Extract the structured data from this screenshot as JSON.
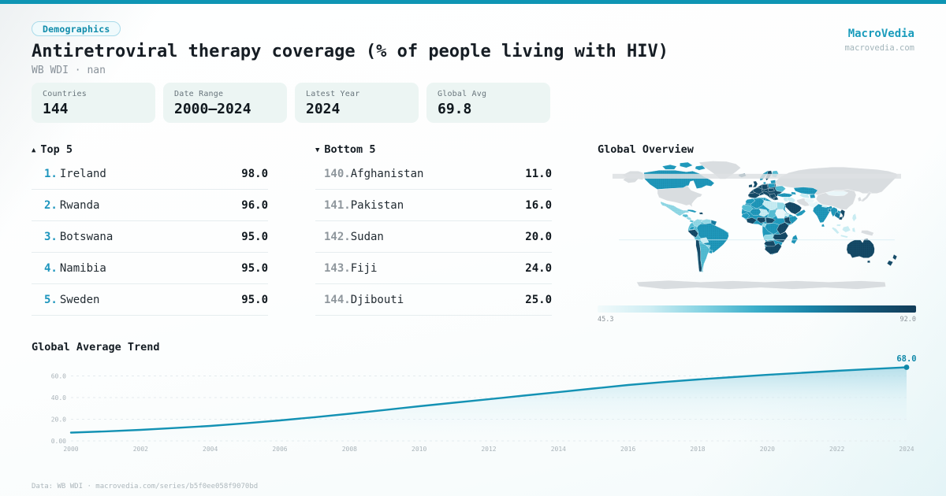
{
  "theme": {
    "accent": "#0e95b4",
    "brand_color": "#1b9cbc",
    "badge_color": "#0f8cab",
    "line_color": "#1492b4",
    "grid_color": "#e4ebee"
  },
  "badge": {
    "label": "Demographics"
  },
  "header": {
    "title": "Antiretroviral therapy coverage (% of people living with HIV)",
    "subtitle": "WB WDI · nan"
  },
  "brand": {
    "name": "MacroVedia",
    "domain": "macrovedia.com"
  },
  "stats": [
    {
      "label": "Countries",
      "value": "144"
    },
    {
      "label": "Date Range",
      "value": "2000—2024"
    },
    {
      "label": "Latest Year",
      "value": "2024"
    },
    {
      "label": "Global Avg",
      "value": "69.8"
    }
  ],
  "top5": {
    "icon": "▲",
    "header": "Top 5",
    "items": [
      {
        "rank": "1.",
        "name": "Ireland",
        "value": "98.0"
      },
      {
        "rank": "2.",
        "name": "Rwanda",
        "value": "96.0"
      },
      {
        "rank": "3.",
        "name": "Botswana",
        "value": "95.0"
      },
      {
        "rank": "4.",
        "name": "Namibia",
        "value": "95.0"
      },
      {
        "rank": "5.",
        "name": "Sweden",
        "value": "95.0"
      }
    ]
  },
  "bottom5": {
    "icon": "▼",
    "header": "Bottom 5",
    "items": [
      {
        "rank": "140.",
        "name": "Afghanistan",
        "value": "11.0"
      },
      {
        "rank": "141.",
        "name": "Pakistan",
        "value": "16.0"
      },
      {
        "rank": "142.",
        "name": "Sudan",
        "value": "20.0"
      },
      {
        "rank": "143.",
        "name": "Fiji",
        "value": "24.0"
      },
      {
        "rank": "144.",
        "name": "Djibouti",
        "value": "25.0"
      }
    ]
  },
  "map": {
    "header": "Global Overview",
    "legend_min": "45.3",
    "legend_max": "92.0",
    "legend_stops": [
      "#f2fafb",
      "#cdedf3",
      "#83d2e2",
      "#3aadc9",
      "#1a84a8",
      "#14587a",
      "#123c58"
    ],
    "palette": {
      "nodata": {
        "base": "#d9dde0"
      },
      "c0": {
        "base": "#e9f6f9"
      },
      "c1": {
        "base": "#c9ecf2",
        "dot": "#a4dde8"
      },
      "c2": {
        "base": "#93d8e5",
        "dot": "#6cc6d8"
      },
      "c3": {
        "base": "#55bcd2",
        "dot": "#2fa5c0"
      },
      "c4": {
        "base": "#2099bb",
        "dot": "#13779c"
      },
      "c5": {
        "base": "#147ba0",
        "dot": "#0f5f82"
      },
      "c6": {
        "base": "#154b68",
        "dot": "#0e354e"
      }
    },
    "region_colors": {
      "sa-base": "c3",
      "eu-base": "c6",
      "af-base": "c4",
      "greenland": "nodata",
      "alaska": "nodata",
      "usa": "nodata",
      "russia": "nodata",
      "china": "nodata",
      "mongolia-x": "nodata",
      "japan": "nodata",
      "korea": "nodata",
      "iran": "nodata",
      "newguinea": "nodata",
      "belarus": "nodata",
      "antarctica": "nodata",
      "canada": "c4",
      "arctic1": "c4",
      "arctic2": "c4",
      "arctic3": "c4",
      "mexico": "c2",
      "guatemala": "c3",
      "nicaragua": "c2",
      "panama": "c3",
      "cuba": "c4",
      "hispaniola": "c6",
      "colombia": "c2",
      "venezuela": "c2",
      "guyanas": "c5",
      "ecuador": "c4",
      "peru": "c6",
      "brazil": "c4",
      "bolivia": "c1",
      "paraguay": "c2",
      "chile": "c6",
      "argentina": "c3",
      "uruguay": "c4",
      "iceland": "c6",
      "ireland": "c6",
      "uk": "c6",
      "iberia": "c6",
      "france": "c6",
      "germany": "c6",
      "italy": "c6",
      "norway": "c4",
      "sweden": "c6",
      "finland": "c3",
      "denmark": "c4",
      "baltics": "c4",
      "poland": "c4",
      "czech": "c6",
      "ukraine": "c3",
      "balkans": "c6",
      "greece": "c6",
      "turkey": "c4",
      "caucasus": "c4",
      "levant": "c1",
      "iraq": "c1",
      "saudi": "c6",
      "yemenoman": "c4",
      "morocco": "c4",
      "algeria": "c4",
      "tunisia": "c4",
      "libya": "c1",
      "egypt": "c2",
      "mauritania": "c3",
      "mali": "c4",
      "niger": "c1",
      "chad": "c3",
      "sudan": "c0",
      "eritrea": "c1",
      "ethiopia": "c6",
      "somalia": "c4",
      "senegal": "c4",
      "westcoast": "c6",
      "nigeria": "c6",
      "cameroon": "c6",
      "drc": "c4",
      "congo": "c2",
      "kenyatz": "c6",
      "angola": "c2",
      "zambiamoz": "c6",
      "namibbotsw": "c6",
      "southafrica": "c6",
      "madagascar": "c4",
      "kazakhstan": "c4",
      "centralasia": "c1",
      "kyrgyz": "c4",
      "afghanistan": "c0",
      "pakistan": "c0",
      "india": "c4",
      "nepal": "c1",
      "bangladesh": "c5",
      "srilanka": "c4",
      "mongolia": "c0",
      "myanmar": "c4",
      "thailand": "c5",
      "laos": "c4",
      "vietnam": "c6",
      "cambodia": "c6",
      "malaysia": "c1",
      "sumatra": "c1",
      "java": "c1",
      "borneo": "c1",
      "sulawesi": "c1",
      "philippines": "c1",
      "australia": "c6",
      "tasmania": "c6",
      "nz1": "c6",
      "nz2": "c6"
    },
    "textured_regions": [
      "brazil",
      "argentina",
      "india",
      "australia",
      "saudi",
      "algeria",
      "libya",
      "canada",
      "kazakhstan",
      "ukraine",
      "mexico",
      "zambiamoz",
      "southafrica",
      "namibbotsw",
      "ethiopia",
      "niger",
      "westcoast",
      "nigeria",
      "peru",
      "mali",
      "iberia",
      "germany",
      "turkey",
      "myanmar",
      "madagascar",
      "somalia",
      "kenyatz",
      "drc",
      "colombia"
    ]
  },
  "chart_data": {
    "type": "area",
    "title": "Global Average Trend",
    "x": [
      2000,
      2001,
      2002,
      2003,
      2004,
      2005,
      2006,
      2007,
      2008,
      2009,
      2010,
      2011,
      2012,
      2013,
      2014,
      2015,
      2016,
      2017,
      2018,
      2019,
      2020,
      2021,
      2022,
      2023,
      2024
    ],
    "values": [
      7.6,
      8.8,
      10.2,
      11.9,
      13.8,
      16.2,
      18.9,
      21.9,
      25.1,
      28.5,
      32.0,
      35.3,
      38.5,
      41.8,
      45.0,
      48.4,
      51.6,
      54.3,
      56.7,
      58.9,
      61.0,
      62.9,
      64.7,
      66.4,
      68.0
    ],
    "end_label": "68.0",
    "yticks": [
      {
        "v": 0,
        "label": "0.00"
      },
      {
        "v": 20,
        "label": "20.0"
      },
      {
        "v": 40,
        "label": "40.0"
      },
      {
        "v": 60,
        "label": "60.0"
      }
    ],
    "xticks": [
      2000,
      2002,
      2004,
      2006,
      2008,
      2010,
      2012,
      2014,
      2016,
      2018,
      2020,
      2022,
      2024
    ],
    "ylim": [
      0,
      72.7
    ],
    "grid": true,
    "legend": "none"
  },
  "footer": {
    "text": "Data: WB WDI · macrovedia.com/series/b5f0ee058f9070bd"
  }
}
